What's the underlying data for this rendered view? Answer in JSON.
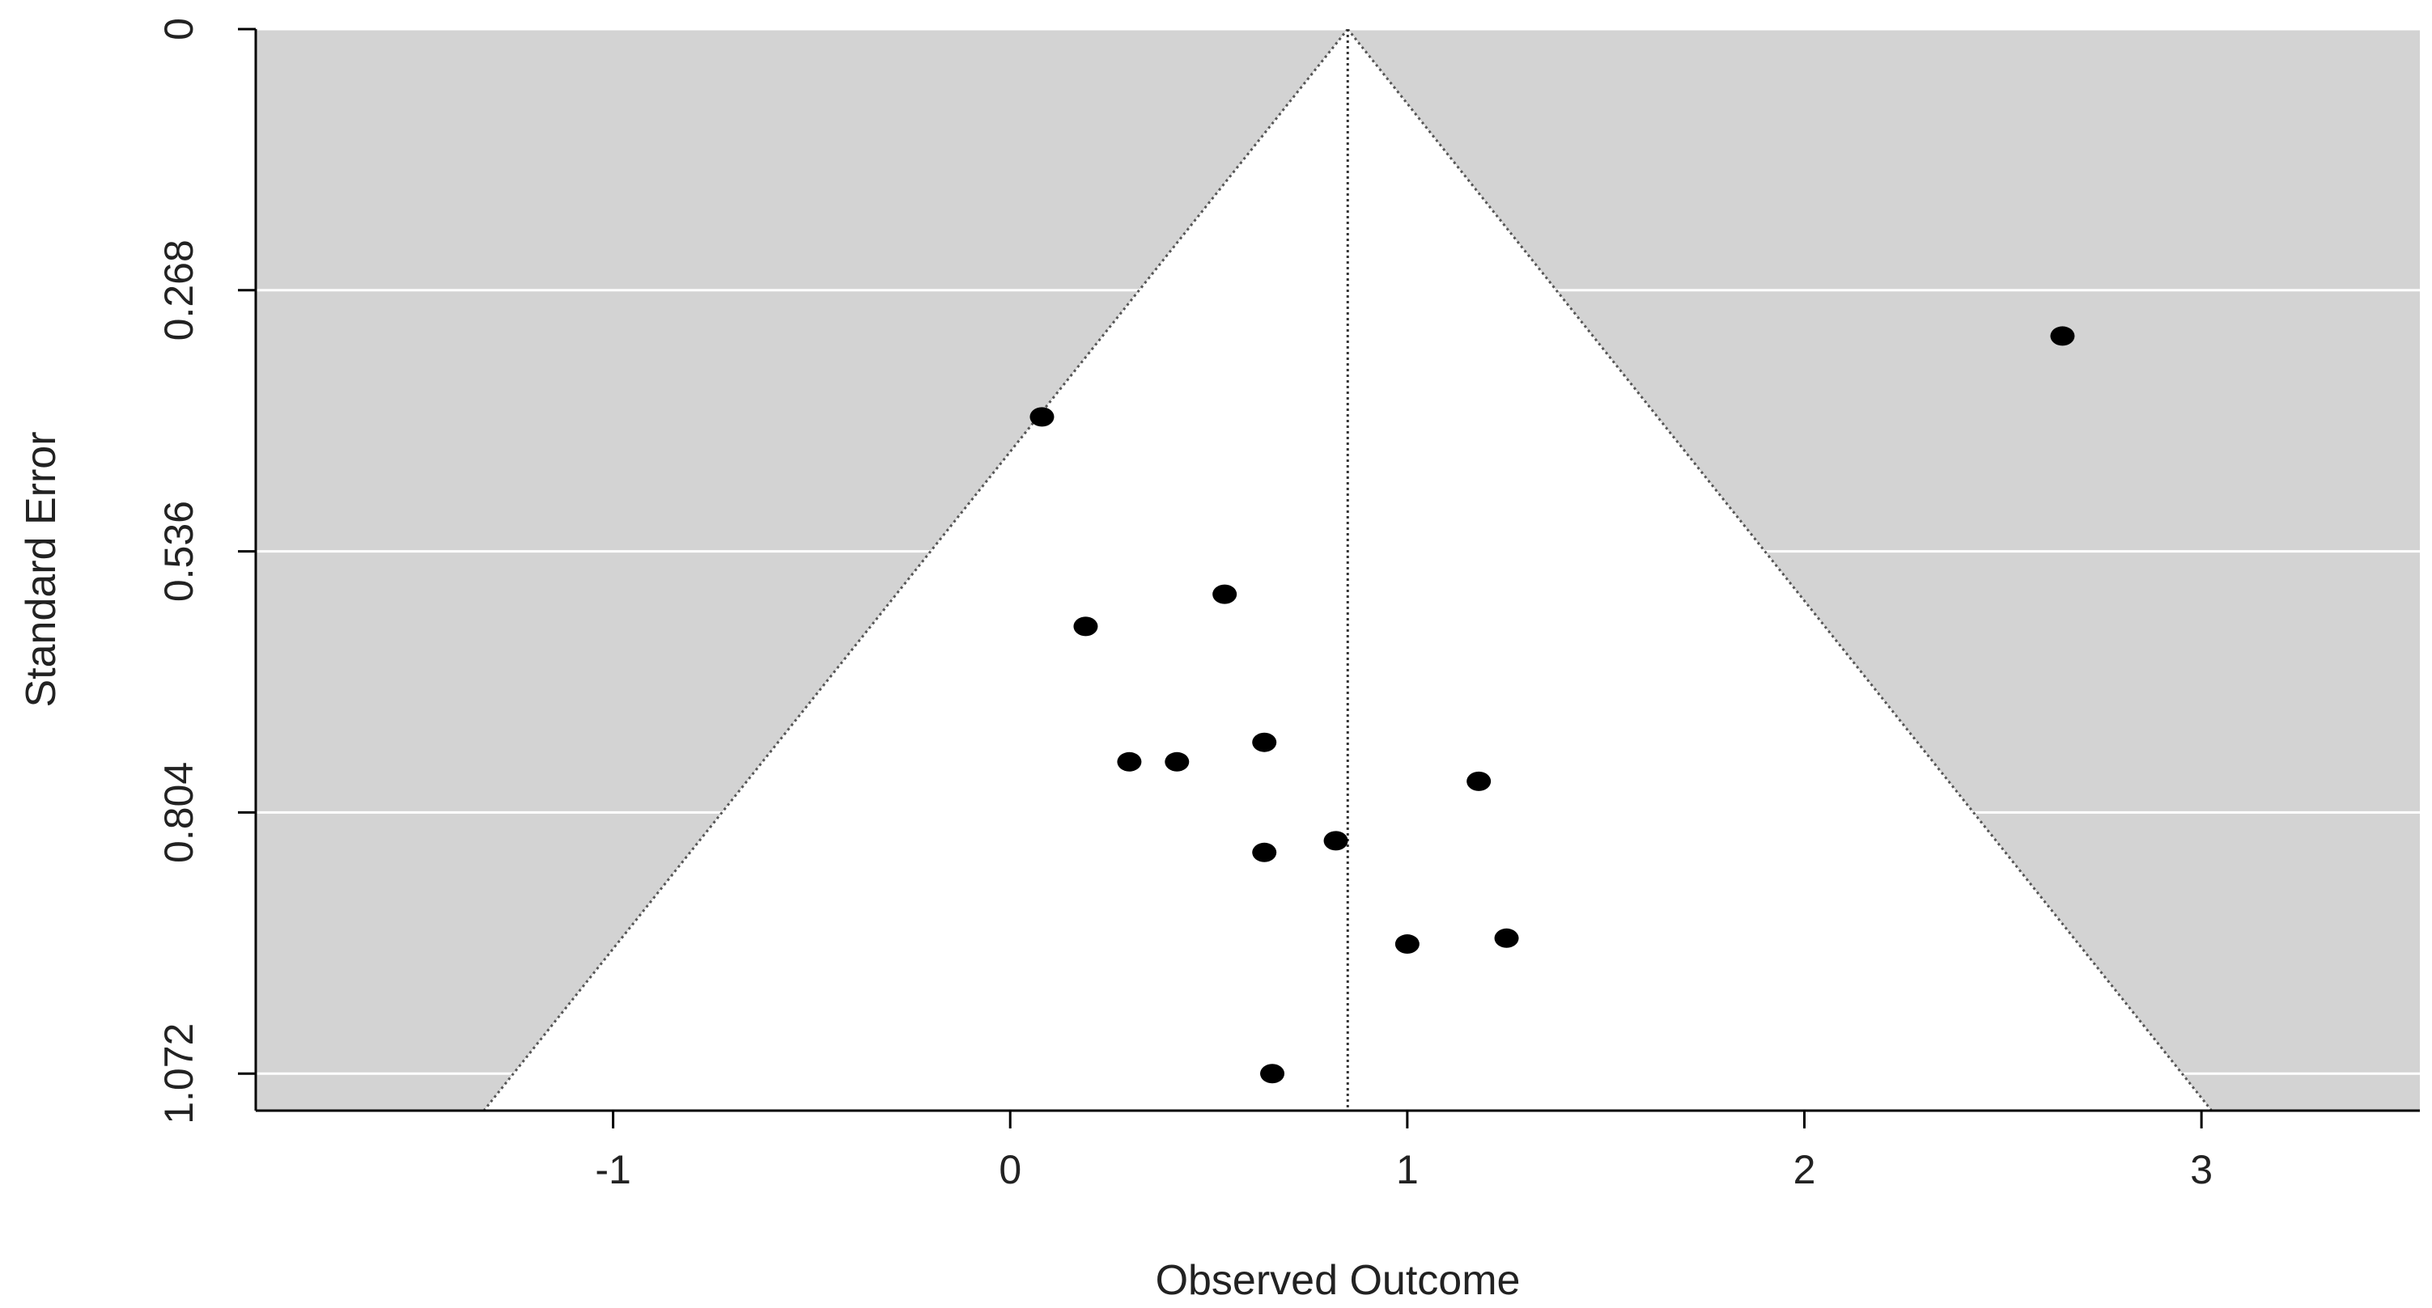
{
  "chart_data": {
    "type": "scatter",
    "subtype": "funnel",
    "title": "",
    "xlabel": "Observed Outcome",
    "ylabel": "Standard Error",
    "xlim": [
      -1.9,
      3.55
    ],
    "ylim": [
      0,
      1.11
    ],
    "y_reversed": true,
    "x_ticks": [
      -1,
      0,
      1,
      2,
      3
    ],
    "x_tick_labels": [
      "-1",
      "0",
      "1",
      "2",
      "3"
    ],
    "y_ticks": [
      0,
      0.268,
      0.536,
      0.804,
      1.072
    ],
    "y_tick_labels": [
      "0",
      "0.268",
      "0.536",
      "0.804",
      "1.072"
    ],
    "grid": "horizontal",
    "center_estimate": 0.85,
    "funnel_z": 1.96,
    "points": [
      {
        "x": 2.65,
        "y": 0.315
      },
      {
        "x": 0.08,
        "y": 0.398
      },
      {
        "x": 0.54,
        "y": 0.58
      },
      {
        "x": 0.19,
        "y": 0.613
      },
      {
        "x": 0.64,
        "y": 0.732
      },
      {
        "x": 0.3,
        "y": 0.752
      },
      {
        "x": 0.42,
        "y": 0.752
      },
      {
        "x": 1.18,
        "y": 0.772
      },
      {
        "x": 0.82,
        "y": 0.833
      },
      {
        "x": 0.64,
        "y": 0.845
      },
      {
        "x": 1.25,
        "y": 0.933
      },
      {
        "x": 1.0,
        "y": 0.939
      },
      {
        "x": 0.66,
        "y": 1.072
      }
    ],
    "colors": {
      "background": "#d3d3d3",
      "funnel": "#ffffff",
      "gridline": "#ffffff",
      "point": "#000000",
      "axis": "#000000"
    }
  }
}
